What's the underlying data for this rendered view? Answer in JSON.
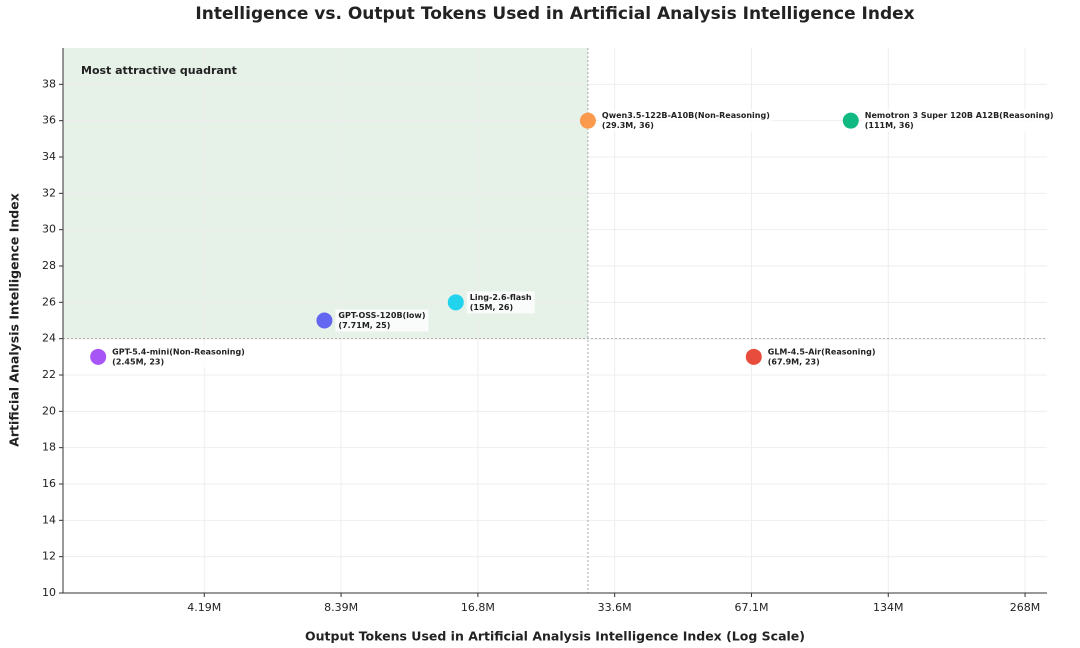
{
  "chart_data": {
    "type": "scatter",
    "title": "Intelligence vs. Output Tokens Used in Artificial Analysis Intelligence Index",
    "x_label": "Output Tokens Used in Artificial Analysis Intelligence Index (Log Scale)",
    "y_label": "Artificial Analysis Intelligence Index",
    "x_scale": "log",
    "grid": true,
    "xlim": [
      2050000,
      300000000
    ],
    "ylim": [
      10,
      40
    ],
    "xticks": [
      {
        "value": 4194304,
        "label": "4.19M"
      },
      {
        "value": 8388608,
        "label": "8.39M"
      },
      {
        "value": 16777216,
        "label": "16.8M"
      },
      {
        "value": 33554432,
        "label": "33.6M"
      },
      {
        "value": 67108864,
        "label": "67.1M"
      },
      {
        "value": 134217728,
        "label": "134M"
      },
      {
        "value": 268435456,
        "label": "268M"
      }
    ],
    "yticks": [
      10,
      12,
      14,
      16,
      18,
      20,
      22,
      24,
      26,
      28,
      30,
      32,
      34,
      36,
      38
    ],
    "quadrant": {
      "label": "Most attractive quadrant",
      "x": 29300000,
      "y": 24,
      "color": "#e6f1e8",
      "label_color": "#2ea043"
    },
    "series": [
      {
        "name": "GPT-5.4-mini(Non-Reasoning)",
        "color": "#a855f7",
        "x": [
          2450000
        ],
        "values": [
          23
        ],
        "value_labels": [
          "(2.45M, 23)"
        ]
      },
      {
        "name": "GPT-OSS-120B(low)",
        "color": "#6366f1",
        "x": [
          7710000
        ],
        "values": [
          25
        ],
        "value_labels": [
          "(7.71M, 25)"
        ]
      },
      {
        "name": "Ling-2.6-flash",
        "color": "#22d3ee",
        "x": [
          15000000
        ],
        "values": [
          26
        ],
        "value_labels": [
          "(15M, 26)"
        ]
      },
      {
        "name": "Qwen3.5-122B-A10B(Non-Reasoning)",
        "color": "#fb9a4c",
        "x": [
          29300000
        ],
        "values": [
          36
        ],
        "value_labels": [
          "(29.3M, 36)"
        ]
      },
      {
        "name": "GLM-4.5-Air(Reasoning)",
        "color": "#e74c3c",
        "x": [
          67900000
        ],
        "values": [
          23
        ],
        "value_labels": [
          "(67.9M, 23)"
        ]
      },
      {
        "name": "Nemotron 3 Super 120B A12B(Reasoning)",
        "color": "#10b981",
        "x": [
          111000000
        ],
        "values": [
          36
        ],
        "value_labels": [
          "(111M, 36)"
        ]
      }
    ]
  }
}
